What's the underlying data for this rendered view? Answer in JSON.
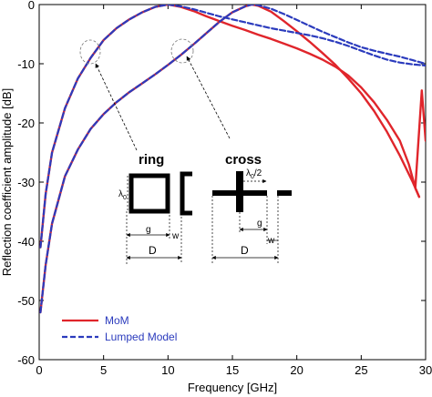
{
  "chart_data": {
    "type": "line",
    "xlabel": "Frequency [GHz]",
    "ylabel": "Reflection coefficient amplitude [dB]",
    "xlim": [
      0,
      30
    ],
    "ylim": [
      -60,
      0
    ],
    "xticks": [
      0,
      5,
      10,
      15,
      20,
      25,
      30
    ],
    "yticks": [
      0,
      -10,
      -20,
      -30,
      -40,
      -50,
      -60
    ],
    "grid": false,
    "legend_position": "bottom-left",
    "series": [
      {
        "name": "MoM",
        "color": "#e0252b",
        "dash": "solid",
        "curves": [
          {
            "x": [
              0.1,
              0.5,
              1,
              2,
              3,
              4,
              5,
              6,
              7,
              8,
              9,
              10,
              11,
              12,
              13,
              14,
              15,
              16,
              17,
              18,
              19,
              20,
              21,
              22,
              23,
              24,
              25,
              26,
              27,
              28,
              28.7,
              29.2,
              29.5
            ],
            "y": [
              -41,
              -32,
              -25,
              -17.5,
              -12.5,
              -9,
              -6,
              -4,
              -2.5,
              -1.3,
              -0.4,
              0,
              -0.4,
              -1.1,
              -2,
              -2.8,
              -3.6,
              -4.3,
              -5.1,
              -5.8,
              -6.6,
              -7.4,
              -8.3,
              -9.3,
              -10.5,
              -12,
              -14,
              -16.5,
              -19.5,
              -23,
              -27,
              -31,
              -32.5
            ]
          },
          {
            "x": [
              0.1,
              0.5,
              1,
              2,
              3,
              4,
              5,
              6,
              7,
              8,
              9,
              10,
              11,
              12,
              13,
              14,
              15,
              16,
              16.5,
              17,
              18,
              19,
              20,
              21,
              22,
              23,
              24,
              25,
              26,
              27,
              28,
              29,
              29.5
            ],
            "y": [
              -52,
              -44,
              -37,
              -29,
              -24.5,
              -21,
              -18.5,
              -16.5,
              -14.8,
              -13.3,
              -11.8,
              -10.2,
              -8.5,
              -6.7,
              -4.8,
              -2.9,
              -1.3,
              -0.3,
              0,
              -0.2,
              -1.2,
              -2.8,
              -4.5,
              -6.3,
              -8.2,
              -10.2,
              -12.5,
              -15,
              -18,
              -21.5,
              -25.5,
              -30,
              -32.5
            ]
          },
          {
            "x": [
              29.2,
              29.7,
              30
            ],
            "y": [
              -31,
              -14.5,
              -23
            ]
          }
        ]
      },
      {
        "name": "Lumped Model",
        "color": "#2b3bbd",
        "dash": "dashed",
        "curves": [
          {
            "x": [
              0.1,
              0.5,
              1,
              2,
              3,
              4,
              5,
              6,
              7,
              8,
              9,
              10,
              11,
              12,
              13,
              14,
              15,
              16,
              17,
              18,
              19,
              20,
              21,
              22,
              23,
              24,
              25,
              26,
              27,
              28,
              29,
              30
            ],
            "y": [
              -41,
              -32,
              -25,
              -17.5,
              -12.5,
              -9,
              -6,
              -4,
              -2.5,
              -1.3,
              -0.4,
              0,
              -0.3,
              -0.8,
              -1.4,
              -2,
              -2.5,
              -3,
              -3.5,
              -4,
              -4.4,
              -4.8,
              -5.2,
              -5.7,
              -6.3,
              -7,
              -7.8,
              -8.6,
              -9.3,
              -9.8,
              -10.1,
              -10.3
            ]
          },
          {
            "x": [
              0.1,
              0.5,
              1,
              2,
              3,
              4,
              5,
              6,
              7,
              8,
              9,
              10,
              11,
              12,
              13,
              14,
              15,
              16,
              16.5,
              17,
              18,
              19,
              20,
              21,
              22,
              23,
              24,
              25,
              26,
              27,
              28,
              29,
              30
            ],
            "y": [
              -52,
              -44,
              -37,
              -29,
              -24.5,
              -21,
              -18.5,
              -16.5,
              -14.8,
              -13.3,
              -11.8,
              -10.2,
              -8.5,
              -6.7,
              -4.8,
              -2.9,
              -1.3,
              -0.3,
              0,
              -0.1,
              -0.7,
              -1.6,
              -2.6,
              -3.6,
              -4.6,
              -5.5,
              -6.4,
              -7.2,
              -7.8,
              -8.3,
              -8.8,
              -9.4,
              -10
            ]
          }
        ]
      }
    ],
    "inset": {
      "ring_title": "ring",
      "cross_title": "cross",
      "ring_side_label": "λ",
      "ring_side_sub": "0",
      "cross_top_label": "λ",
      "cross_top_sub": "0",
      "cross_top_frac": "/2",
      "g_label": "g",
      "w_label": "w",
      "d_label": "D"
    }
  }
}
